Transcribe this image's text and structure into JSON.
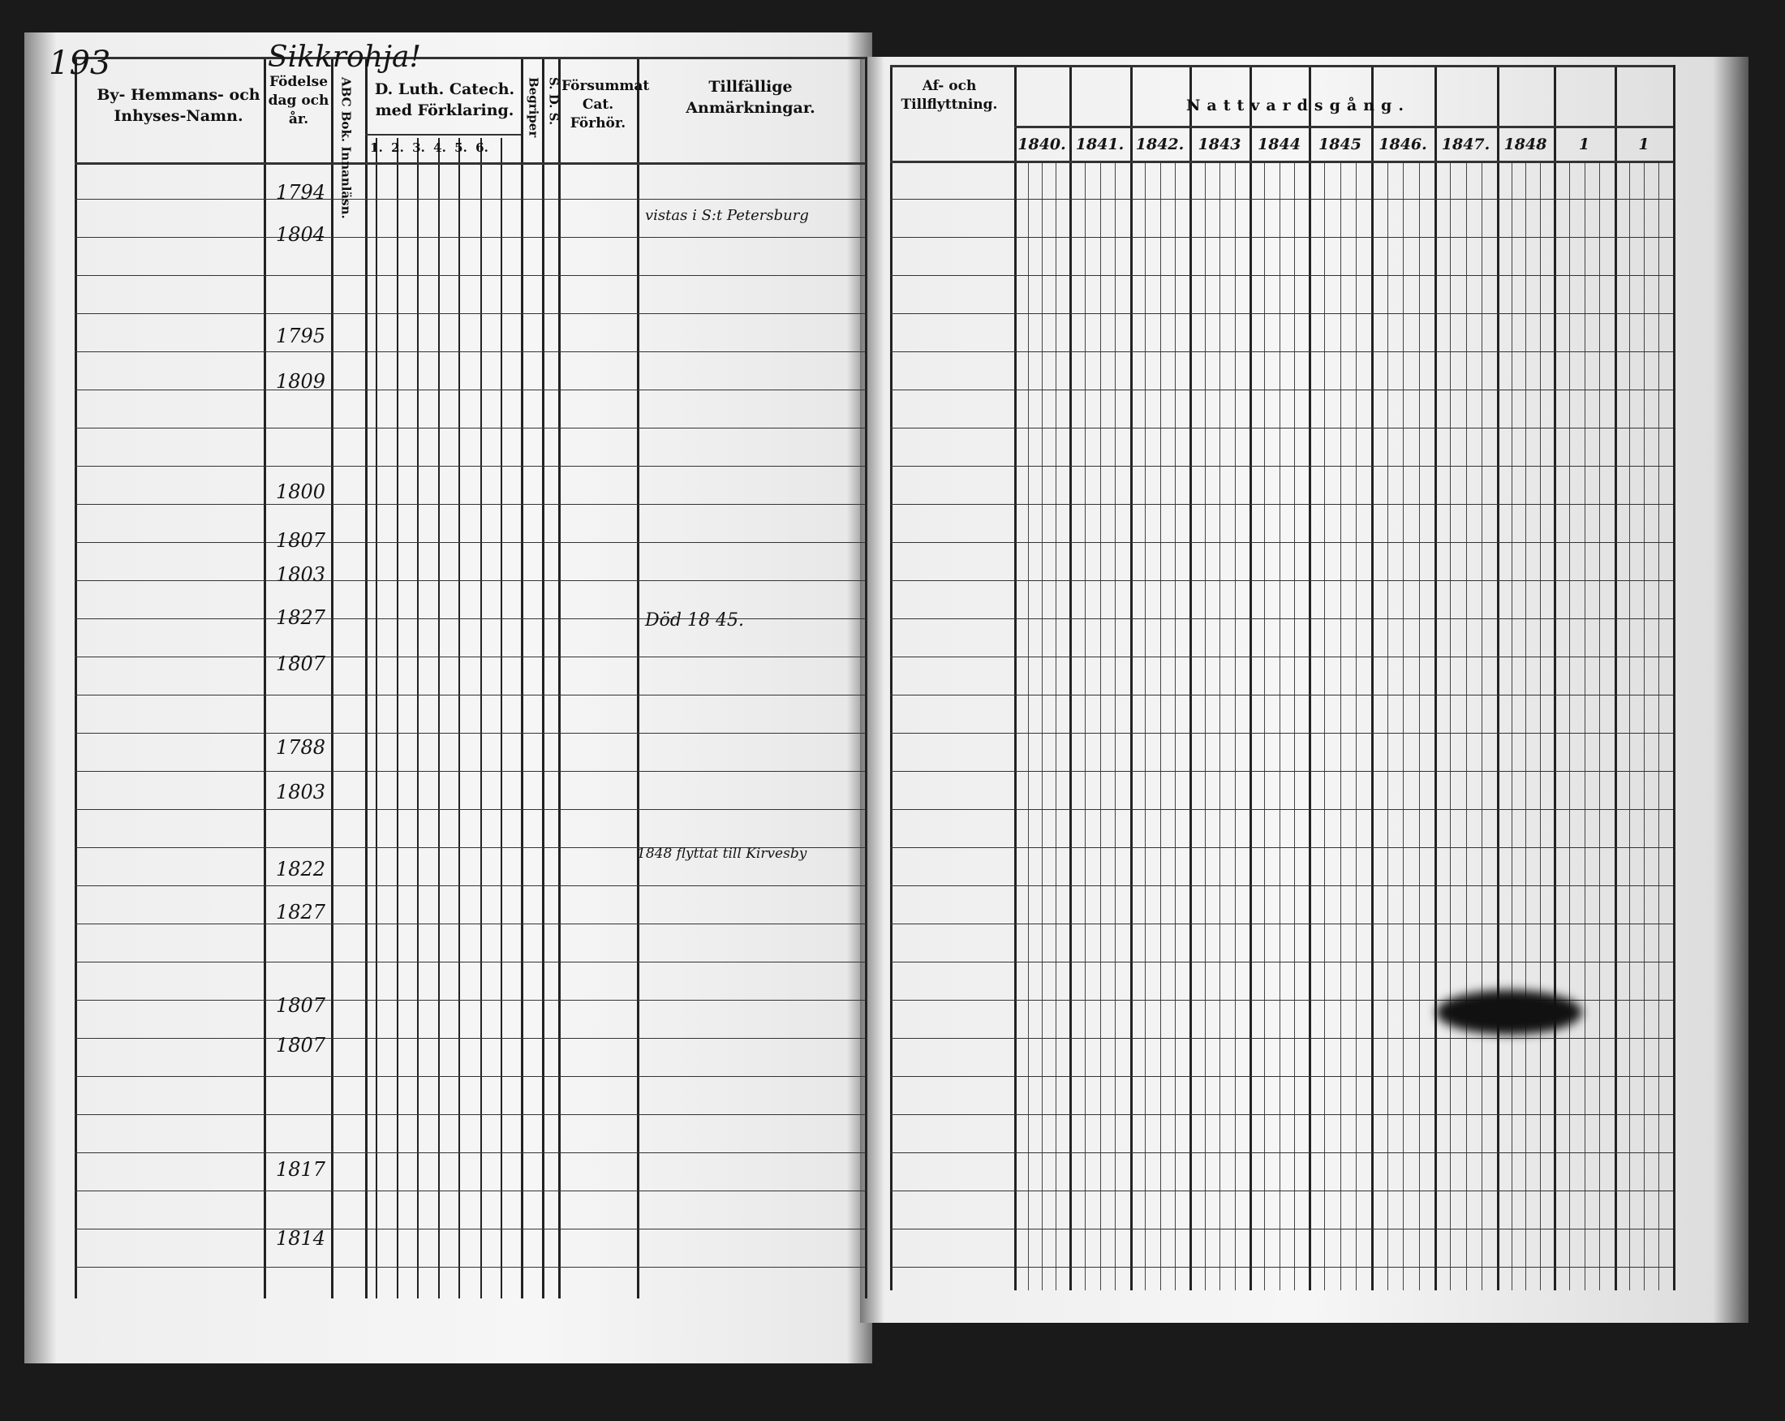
{
  "left_page": {
    "page_number": "193",
    "village_heading": "Sikkrohja!",
    "headers": {
      "name": "By- Hemmans- och Inhyses-Namn.",
      "birth": "Födelse dag och år.",
      "abc": "ABC Bok. Innanläsn.",
      "catechism": "D. Luth. Catech. med Förklaring.",
      "catechism_parts": [
        "1.",
        "2.",
        "3.",
        "4.",
        "5.",
        "6."
      ],
      "understands": "Begriper",
      "sds": "S. D. S.",
      "missed": "Försummat Cat. Förhör.",
      "remarks": "Tillfällige Anmärkningar."
    },
    "birth_years": [
      "1794",
      "1804",
      "1795",
      "1809",
      "1800",
      "1807",
      "1803",
      "1827",
      "1807",
      "1788",
      "1803",
      "1822",
      "1827",
      "1807",
      "1807",
      "1817",
      "1814"
    ],
    "remarks": [
      "vistas i S:t Petersburg",
      "Död 18 45.",
      "1848 flyttat till Kirvesby"
    ]
  },
  "right_page": {
    "headers": {
      "moves": "Af- och Tillflyttning.",
      "communion": "Nattvardsgång.",
      "years": [
        "1840.",
        "1841.",
        "1842.",
        "1843",
        "1844",
        "1845",
        "1846.",
        "1847.",
        "1848",
        "1",
        "1"
      ]
    }
  }
}
